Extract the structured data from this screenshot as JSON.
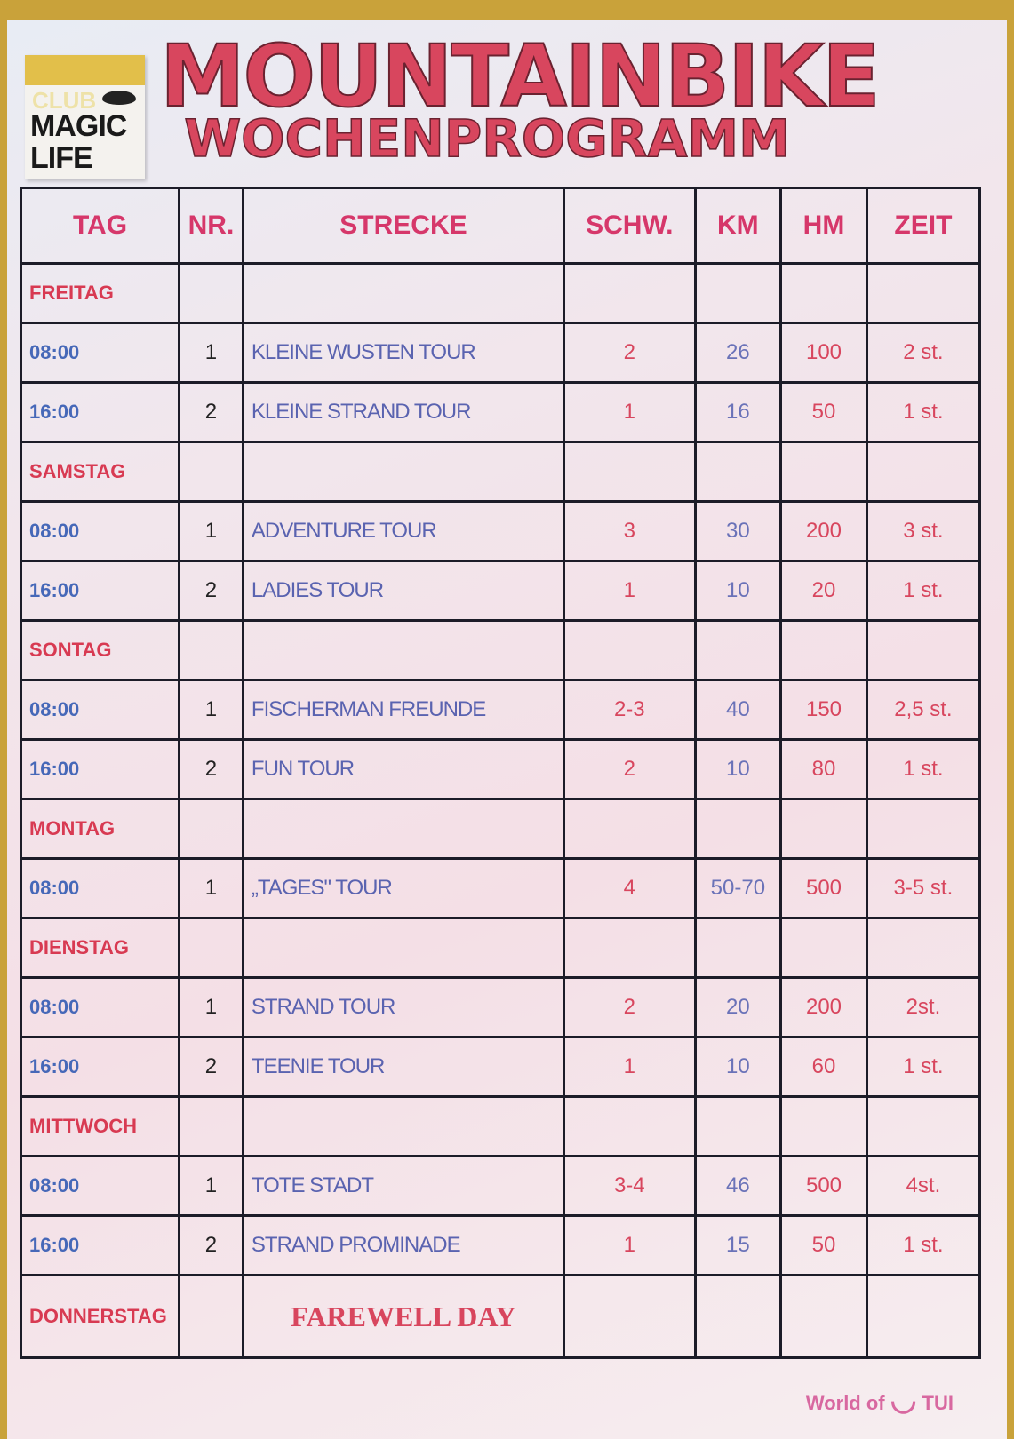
{
  "logo": {
    "club": "CLUB",
    "brand": "MAGIC LIFE"
  },
  "title": "MOUNTAINBIKE",
  "subtitle": "WOCHENPROGRAMM",
  "columns": [
    "TAG",
    "NR.",
    "STRECKE",
    "SCHW.",
    "KM",
    "HM",
    "ZEIT"
  ],
  "days": [
    {
      "name": "FREITAG",
      "tours": [
        {
          "time": "08:00",
          "nr": "1",
          "route": "KLEINE WUSTEN TOUR",
          "schw": "2",
          "km": "26",
          "hm": "100",
          "zeit": "2 st."
        },
        {
          "time": "16:00",
          "nr": "2",
          "route": "KLEINE STRAND TOUR",
          "schw": "1",
          "km": "16",
          "hm": "50",
          "zeit": "1 st."
        }
      ]
    },
    {
      "name": "SAMSTAG",
      "tours": [
        {
          "time": "08:00",
          "nr": "1",
          "route": "ADVENTURE TOUR",
          "schw": "3",
          "km": "30",
          "hm": "200",
          "zeit": "3 st."
        },
        {
          "time": "16:00",
          "nr": "2",
          "route": "LADIES TOUR",
          "schw": "1",
          "km": "10",
          "hm": "20",
          "zeit": "1 st."
        }
      ]
    },
    {
      "name": "SONTAG",
      "tours": [
        {
          "time": "08:00",
          "nr": "1",
          "route": "FISCHERMAN FREUNDE",
          "schw": "2-3",
          "km": "40",
          "hm": "150",
          "zeit": "2,5 st."
        },
        {
          "time": "16:00",
          "nr": "2",
          "route": "FUN TOUR",
          "schw": "2",
          "km": "10",
          "hm": "80",
          "zeit": "1 st."
        }
      ]
    },
    {
      "name": "MONTAG",
      "tours": [
        {
          "time": "08:00",
          "nr": "1",
          "route": "„TAGES\" TOUR",
          "schw": "4",
          "km": "50-70",
          "hm": "500",
          "zeit": "3-5 st."
        }
      ]
    },
    {
      "name": "DIENSTAG",
      "tours": [
        {
          "time": "08:00",
          "nr": "1",
          "route": "STRAND TOUR",
          "schw": "2",
          "km": "20",
          "hm": "200",
          "zeit": "2st."
        },
        {
          "time": "16:00",
          "nr": "2",
          "route": "TEENIE TOUR",
          "schw": "1",
          "km": "10",
          "hm": "60",
          "zeit": "1 st."
        }
      ]
    },
    {
      "name": "MITTWOCH",
      "tours": [
        {
          "time": "08:00",
          "nr": "1",
          "route": "TOTE STADT",
          "schw": "3-4",
          "km": "46",
          "hm": "500",
          "zeit": "4st."
        },
        {
          "time": "16:00",
          "nr": "2",
          "route": "STRAND PROMINADE",
          "schw": "1",
          "km": "15",
          "hm": "50",
          "zeit": "1 st."
        }
      ]
    }
  ],
  "last_day": {
    "name": "DONNERSTAG",
    "note": "FAREWELL DAY"
  },
  "footer": {
    "prefix": "World of",
    "brand": "TUI"
  }
}
